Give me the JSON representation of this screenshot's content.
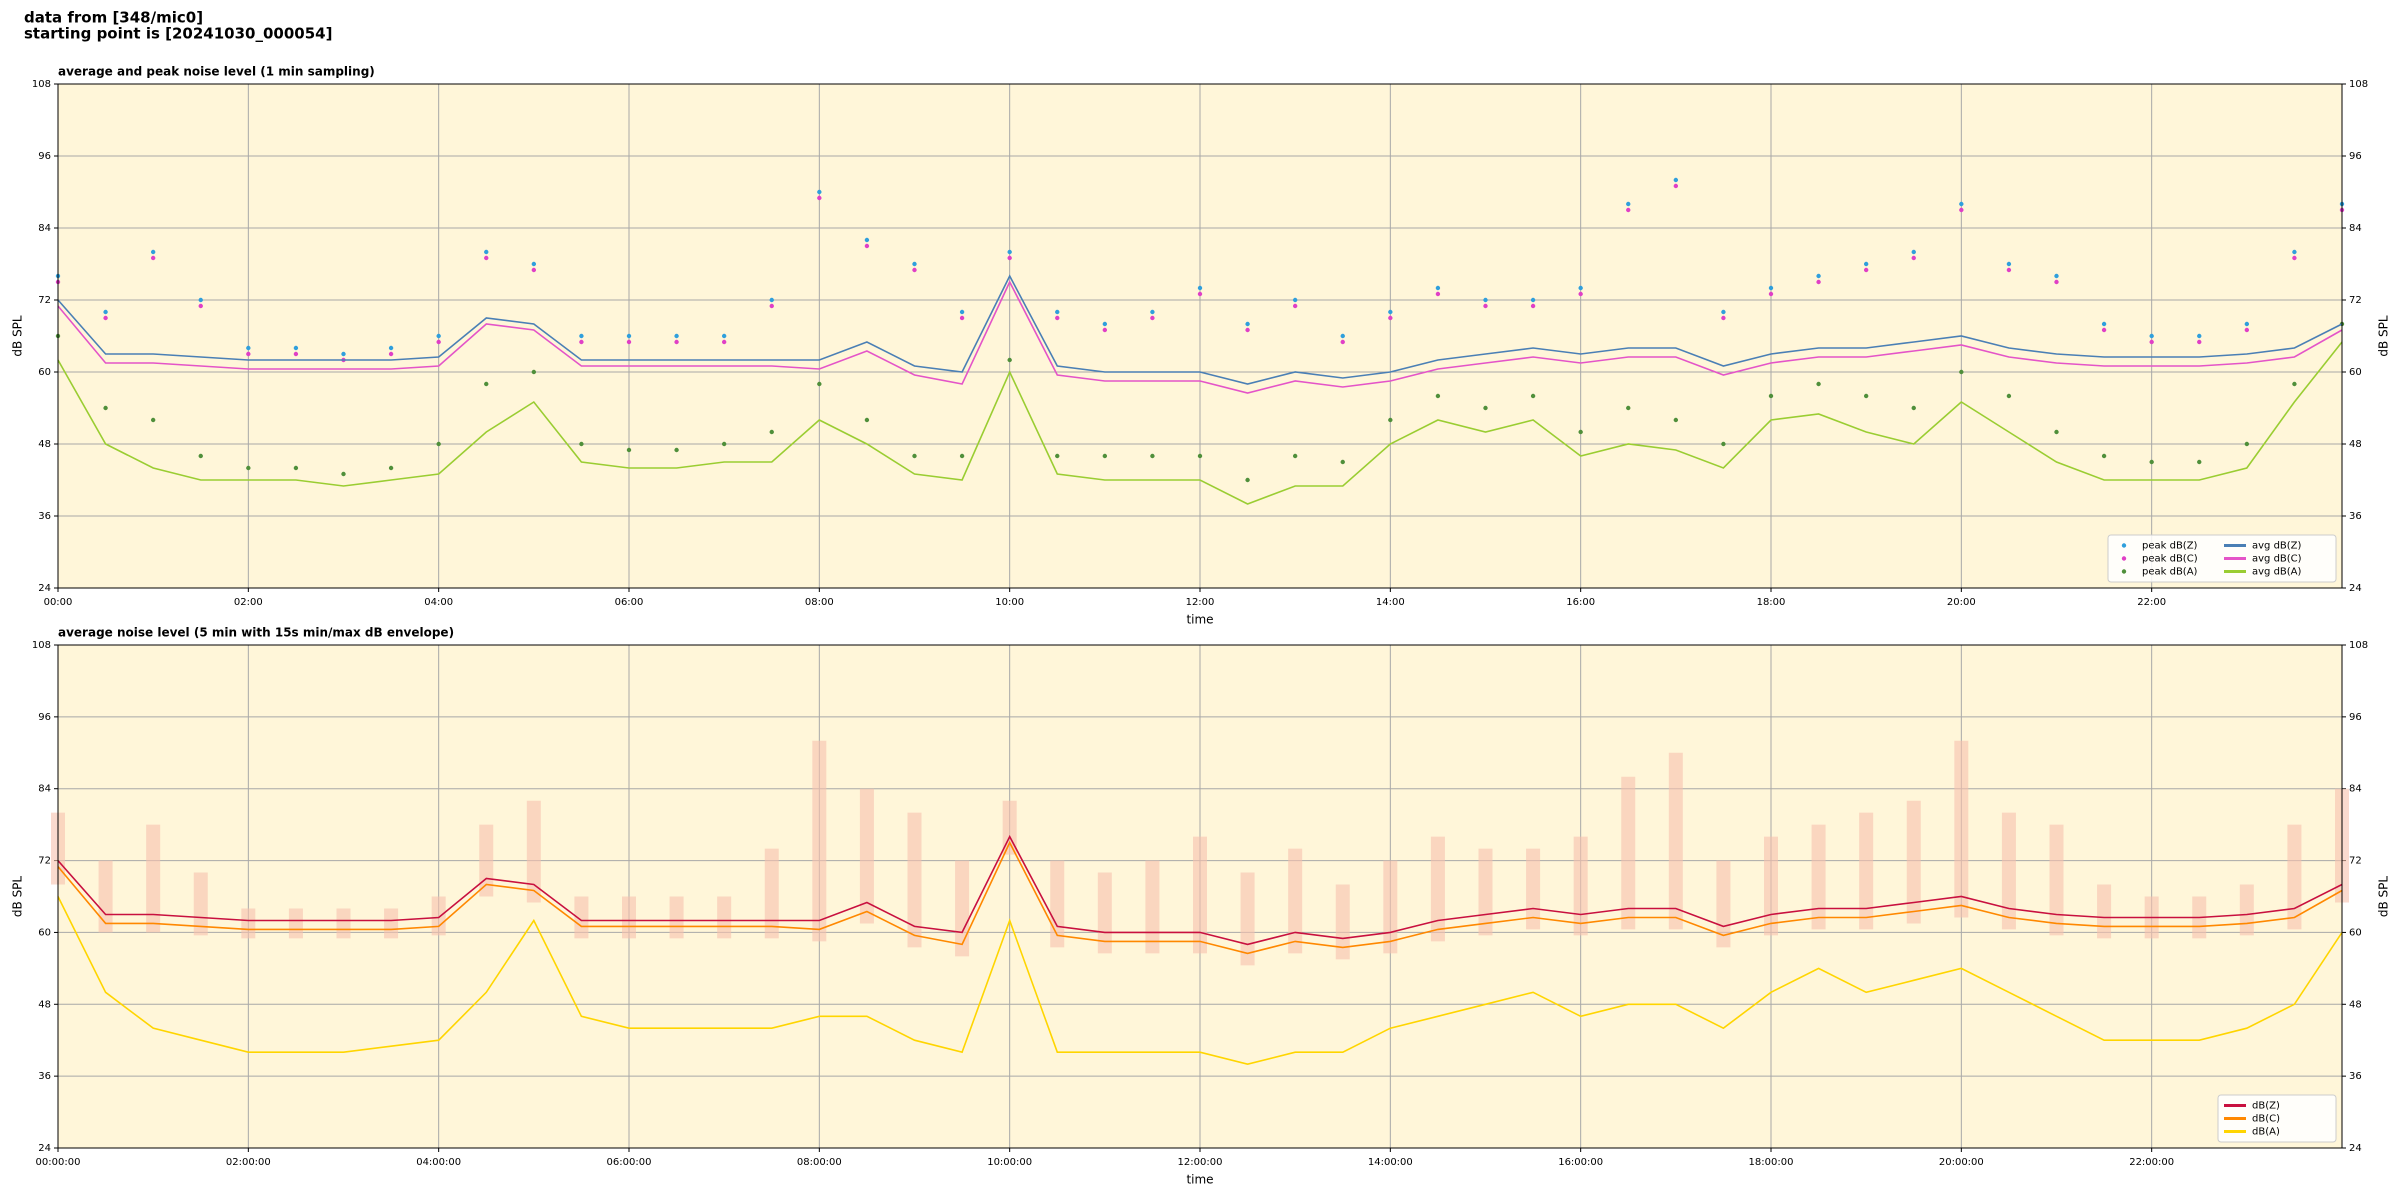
{
  "suptitle": [
    "data from [348/mic0]",
    "starting point is [20241030_000054]"
  ],
  "chart_data": [
    {
      "type": "line",
      "title": "average and peak noise level (1 min sampling)",
      "xlabel": "time",
      "ylabel": "dB SPL",
      "x": [
        0,
        0.5,
        1,
        1.5,
        2,
        2.5,
        3,
        3.5,
        4,
        4.5,
        5,
        5.5,
        6,
        6.5,
        7,
        7.5,
        8,
        8.5,
        9,
        9.5,
        10,
        10.5,
        11,
        11.5,
        12,
        12.5,
        13,
        13.5,
        14,
        14.5,
        15,
        15.5,
        16,
        16.5,
        17,
        17.5,
        18,
        18.5,
        19,
        19.5,
        20,
        20.5,
        21,
        21.5,
        22,
        22.5,
        23,
        23.5,
        24
      ],
      "xlim": [
        0,
        24
      ],
      "xticks": [
        {
          "value": 0,
          "label": "00:00"
        },
        {
          "value": 2,
          "label": "02:00"
        },
        {
          "value": 4,
          "label": "04:00"
        },
        {
          "value": 6,
          "label": "06:00"
        },
        {
          "value": 8,
          "label": "08:00"
        },
        {
          "value": 10,
          "label": "10:00"
        },
        {
          "value": 12,
          "label": "12:00"
        },
        {
          "value": 14,
          "label": "14:00"
        },
        {
          "value": 16,
          "label": "16:00"
        },
        {
          "value": 18,
          "label": "18:00"
        },
        {
          "value": 20,
          "label": "20:00"
        },
        {
          "value": 22,
          "label": "22:00"
        }
      ],
      "ylim": [
        24,
        108
      ],
      "yticks": [
        24,
        36,
        48,
        60,
        72,
        84,
        96,
        108
      ],
      "grid": true,
      "legend": "lower right",
      "legend_columns": 2,
      "series": [
        {
          "name": "peak dB(Z)",
          "style": "markers",
          "color": "#2f9fdc",
          "values": [
            76,
            70,
            80,
            72,
            64,
            64,
            63,
            64,
            66,
            80,
            78,
            66,
            66,
            66,
            66,
            72,
            90,
            82,
            78,
            70,
            80,
            70,
            68,
            70,
            74,
            68,
            72,
            66,
            70,
            74,
            72,
            72,
            74,
            88,
            92,
            70,
            74,
            76,
            78,
            80,
            88,
            78,
            76,
            68,
            66,
            66,
            68,
            80,
            88
          ]
        },
        {
          "name": "peak dB(C)",
          "style": "markers",
          "color": "#e03fc6",
          "values": [
            75,
            69,
            79,
            71,
            63,
            63,
            62,
            63,
            65,
            79,
            77,
            65,
            65,
            65,
            65,
            71,
            89,
            81,
            77,
            69,
            79,
            69,
            67,
            69,
            73,
            67,
            71,
            65,
            69,
            73,
            71,
            71,
            73,
            87,
            91,
            69,
            73,
            75,
            77,
            79,
            87,
            77,
            75,
            67,
            65,
            65,
            67,
            79,
            87
          ]
        },
        {
          "name": "peak dB(A)",
          "style": "markers",
          "color": "#4f8f3a",
          "values": [
            66,
            54,
            52,
            46,
            44,
            44,
            43,
            44,
            48,
            58,
            60,
            48,
            47,
            47,
            48,
            50,
            58,
            52,
            46,
            46,
            62,
            46,
            46,
            46,
            46,
            42,
            46,
            45,
            52,
            56,
            54,
            56,
            50,
            54,
            52,
            48,
            56,
            58,
            56,
            54,
            60,
            56,
            50,
            46,
            45,
            45,
            48,
            58,
            68
          ]
        },
        {
          "name": "avg dB(Z)",
          "style": "line",
          "color": "#4a7fb5",
          "values": [
            72,
            63,
            63,
            62.5,
            62,
            62,
            62,
            62,
            62.5,
            69,
            68,
            62,
            62,
            62,
            62,
            62,
            62,
            65,
            61,
            60,
            76,
            61,
            60,
            60,
            60,
            58,
            60,
            59,
            60,
            62,
            63,
            64,
            63,
            64,
            64,
            61,
            63,
            64,
            64,
            65,
            66,
            64,
            63,
            62.5,
            62.5,
            62.5,
            63,
            64,
            68
          ]
        },
        {
          "name": "avg dB(C)",
          "style": "line",
          "color": "#e454c8",
          "values": [
            71,
            61.5,
            61.5,
            61,
            60.5,
            60.5,
            60.5,
            60.5,
            61,
            68,
            67,
            61,
            61,
            61,
            61,
            61,
            60.5,
            63.5,
            59.5,
            58,
            75,
            59.5,
            58.5,
            58.5,
            58.5,
            56.5,
            58.5,
            57.5,
            58.5,
            60.5,
            61.5,
            62.5,
            61.5,
            62.5,
            62.5,
            59.5,
            61.5,
            62.5,
            62.5,
            63.5,
            64.5,
            62.5,
            61.5,
            61,
            61,
            61,
            61.5,
            62.5,
            67
          ]
        },
        {
          "name": "avg dB(A)",
          "style": "line",
          "color": "#9acd32",
          "values": [
            62,
            48,
            44,
            42,
            42,
            42,
            41,
            42,
            43,
            50,
            55,
            45,
            44,
            44,
            45,
            45,
            52,
            48,
            43,
            42,
            60,
            43,
            42,
            42,
            42,
            38,
            41,
            41,
            48,
            52,
            50,
            52,
            46,
            48,
            47,
            44,
            52,
            53,
            50,
            48,
            55,
            50,
            45,
            42,
            42,
            42,
            44,
            55,
            65
          ]
        }
      ]
    },
    {
      "type": "line",
      "title": "average noise level (5 min with 15s min/max dB envelope)",
      "xlabel": "time",
      "ylabel": "dB SPL",
      "x": [
        0,
        0.5,
        1,
        1.5,
        2,
        2.5,
        3,
        3.5,
        4,
        4.5,
        5,
        5.5,
        6,
        6.5,
        7,
        7.5,
        8,
        8.5,
        9,
        9.5,
        10,
        10.5,
        11,
        11.5,
        12,
        12.5,
        13,
        13.5,
        14,
        14.5,
        15,
        15.5,
        16,
        16.5,
        17,
        17.5,
        18,
        18.5,
        19,
        19.5,
        20,
        20.5,
        21,
        21.5,
        22,
        22.5,
        23,
        23.5,
        24
      ],
      "xlim": [
        0,
        24
      ],
      "xticks": [
        {
          "value": 0,
          "label": "00:00:00"
        },
        {
          "value": 2,
          "label": "02:00:00"
        },
        {
          "value": 4,
          "label": "04:00:00"
        },
        {
          "value": 6,
          "label": "06:00:00"
        },
        {
          "value": 8,
          "label": "08:00:00"
        },
        {
          "value": 10,
          "label": "10:00:00"
        },
        {
          "value": 12,
          "label": "12:00:00"
        },
        {
          "value": 14,
          "label": "14:00:00"
        },
        {
          "value": 16,
          "label": "16:00:00"
        },
        {
          "value": 18,
          "label": "18:00:00"
        },
        {
          "value": 20,
          "label": "20:00:00"
        },
        {
          "value": 22,
          "label": "22:00:00"
        }
      ],
      "ylim": [
        24,
        108
      ],
      "yticks": [
        24,
        36,
        48,
        60,
        72,
        84,
        96,
        108
      ],
      "grid": true,
      "legend": "lower right",
      "legend_columns": 1,
      "band": {
        "color": "#f7c2ae",
        "low": [
          68,
          60,
          60,
          59.5,
          59,
          59,
          59,
          59,
          59.5,
          66,
          65,
          59,
          59,
          59,
          59,
          59,
          58.5,
          61.5,
          57.5,
          56,
          73,
          57.5,
          56.5,
          56.5,
          56.5,
          54.5,
          56.5,
          55.5,
          56.5,
          58.5,
          59.5,
          60.5,
          59.5,
          60.5,
          60.5,
          57.5,
          59.5,
          60.5,
          60.5,
          61.5,
          62.5,
          60.5,
          59.5,
          59,
          59,
          59,
          59.5,
          60.5,
          65
        ],
        "high": [
          80,
          72,
          78,
          70,
          64,
          64,
          64,
          64,
          66,
          78,
          82,
          66,
          66,
          66,
          66,
          74,
          92,
          84,
          80,
          72,
          82,
          72,
          70,
          72,
          76,
          70,
          74,
          68,
          72,
          76,
          74,
          74,
          76,
          86,
          90,
          72,
          76,
          78,
          80,
          82,
          92,
          80,
          78,
          68,
          66,
          66,
          68,
          78,
          84
        ]
      },
      "series": [
        {
          "name": "dB(Z)",
          "style": "line",
          "color": "#c8103f",
          "values": [
            72,
            63,
            63,
            62.5,
            62,
            62,
            62,
            62,
            62.5,
            69,
            68,
            62,
            62,
            62,
            62,
            62,
            62,
            65,
            61,
            60,
            76,
            61,
            60,
            60,
            60,
            58,
            60,
            59,
            60,
            62,
            63,
            64,
            63,
            64,
            64,
            61,
            63,
            64,
            64,
            65,
            66,
            64,
            63,
            62.5,
            62.5,
            62.5,
            63,
            64,
            68
          ]
        },
        {
          "name": "dB(C)",
          "style": "line",
          "color": "#ff8800",
          "values": [
            71,
            61.5,
            61.5,
            61,
            60.5,
            60.5,
            60.5,
            60.5,
            61,
            68,
            67,
            61,
            61,
            61,
            61,
            61,
            60.5,
            63.5,
            59.5,
            58,
            75,
            59.5,
            58.5,
            58.5,
            58.5,
            56.5,
            58.5,
            57.5,
            58.5,
            60.5,
            61.5,
            62.5,
            61.5,
            62.5,
            62.5,
            59.5,
            61.5,
            62.5,
            62.5,
            63.5,
            64.5,
            62.5,
            61.5,
            61,
            61,
            61,
            61.5,
            62.5,
            67
          ]
        },
        {
          "name": "dB(A)",
          "style": "line",
          "color": "#ffd500",
          "values": [
            66,
            50,
            44,
            42,
            40,
            40,
            40,
            41,
            42,
            50,
            62,
            46,
            44,
            44,
            44,
            44,
            46,
            46,
            42,
            40,
            62,
            40,
            40,
            40,
            40,
            38,
            40,
            40,
            44,
            46,
            48,
            50,
            46,
            48,
            48,
            44,
            50,
            54,
            50,
            52,
            54,
            50,
            46,
            42,
            42,
            42,
            44,
            48,
            60
          ]
        }
      ]
    }
  ]
}
